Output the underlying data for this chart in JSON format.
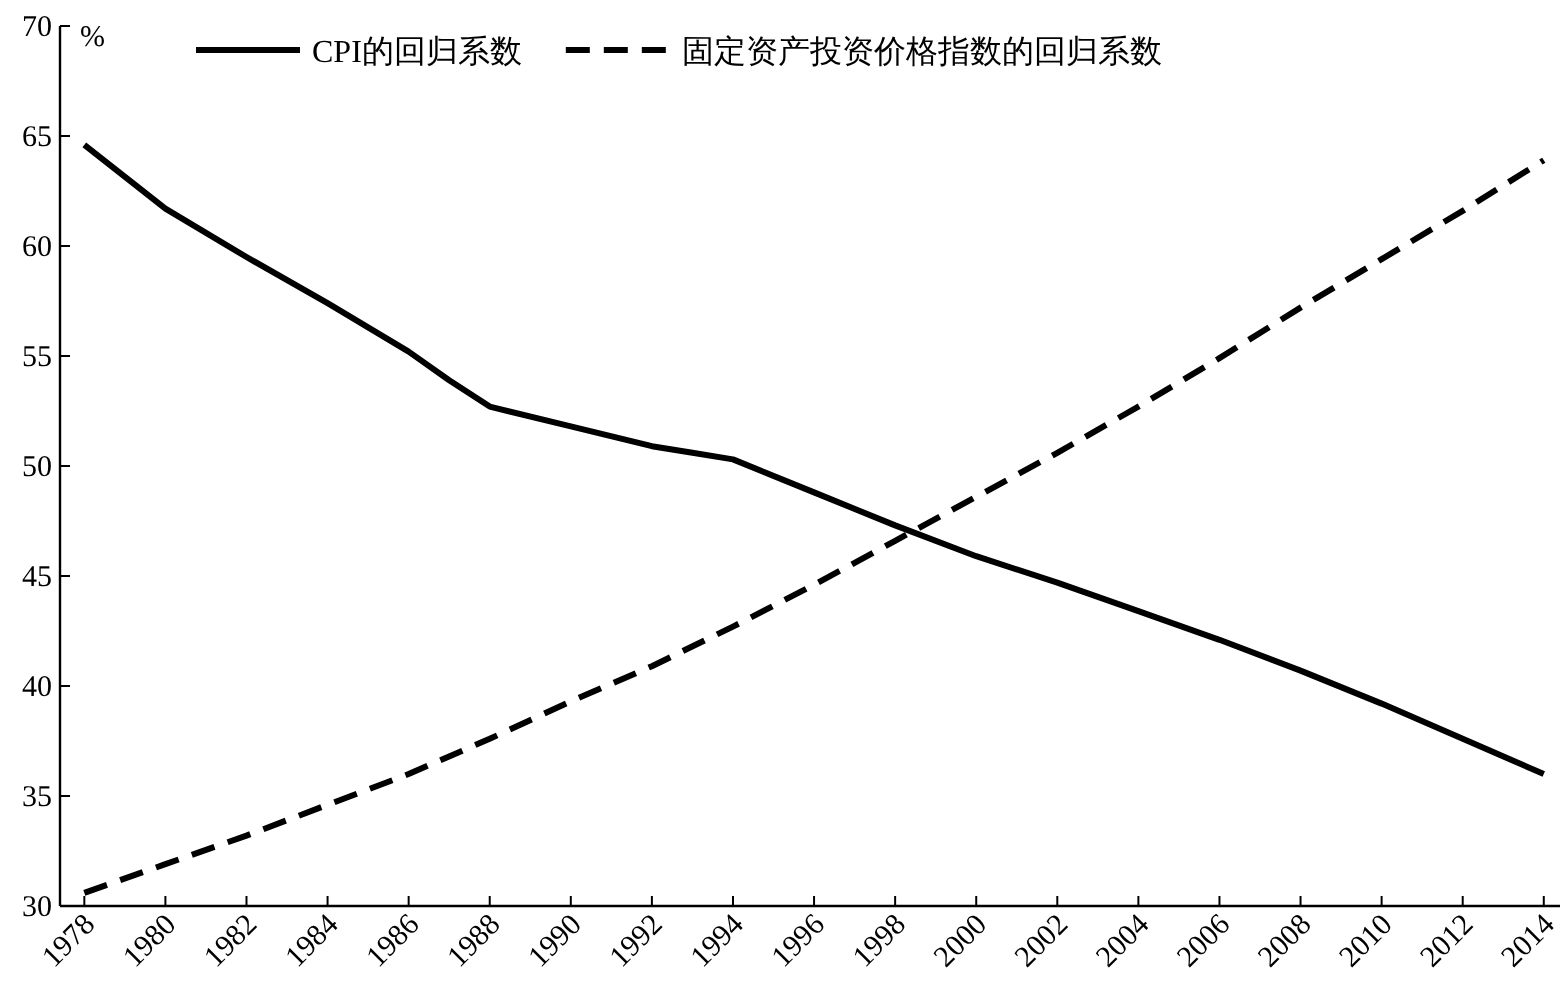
{
  "chart_data": {
    "type": "line",
    "ylabel": "%",
    "xlim": [
      1977.4,
      2014.4
    ],
    "xticks": [
      1978,
      1980,
      1982,
      1984,
      1986,
      1988,
      1990,
      1992,
      1994,
      1996,
      1998,
      2000,
      2002,
      2004,
      2006,
      2008,
      2010,
      2012,
      2014
    ],
    "ylim": [
      30,
      70
    ],
    "yticks": [
      30,
      35,
      40,
      45,
      50,
      55,
      60,
      65,
      70
    ],
    "legend": "top",
    "series": [
      {
        "name": "CPI的回归系数",
        "color": "#000000",
        "line_style": "solid",
        "x": [
          1978,
          1980,
          1982,
          1984,
          1986,
          1987,
          1988,
          1990,
          1992,
          1993,
          1994,
          1996,
          1998,
          2000,
          2002,
          2004,
          2006,
          2008,
          2010,
          2012,
          2014
        ],
        "values": [
          64.6,
          61.7,
          59.5,
          57.4,
          55.2,
          53.9,
          52.7,
          51.8,
          50.9,
          50.6,
          50.3,
          48.8,
          47.3,
          45.9,
          44.7,
          43.4,
          42.1,
          40.7,
          39.2,
          37.6,
          36.0
        ]
      },
      {
        "name": "固定资产投资价格指数的回归系数",
        "color": "#000000",
        "line_style": "dashed",
        "x": [
          1978,
          1980,
          1982,
          1984,
          1986,
          1988,
          1990,
          1992,
          1994,
          1996,
          1998,
          2000,
          2002,
          2004,
          2006,
          2008,
          2010,
          2012,
          2014
        ],
        "values": [
          30.6,
          31.9,
          33.2,
          34.6,
          36.0,
          37.6,
          39.3,
          40.9,
          42.7,
          44.6,
          46.6,
          48.6,
          50.6,
          52.7,
          54.9,
          57.2,
          59.4,
          61.6,
          63.9
        ]
      }
    ]
  }
}
